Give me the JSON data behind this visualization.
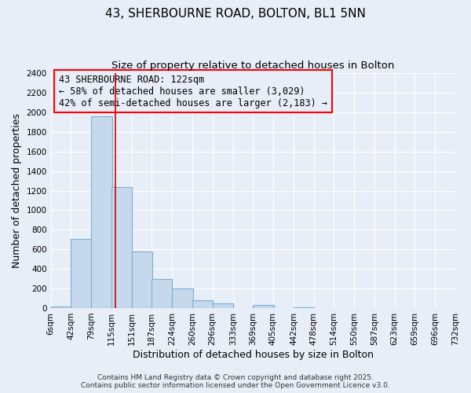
{
  "title": "43, SHERBOURNE ROAD, BOLTON, BL1 5NN",
  "subtitle": "Size of property relative to detached houses in Bolton",
  "xlabel": "Distribution of detached houses by size in Bolton",
  "ylabel": "Number of detached properties",
  "bar_left_edges": [
    6,
    42,
    79,
    115,
    151,
    187,
    224,
    260,
    296,
    333,
    369,
    405,
    442,
    478,
    514,
    550,
    587,
    623,
    659,
    696
  ],
  "bar_heights": [
    15,
    710,
    1960,
    1240,
    580,
    300,
    200,
    80,
    45,
    0,
    35,
    0,
    10,
    0,
    0,
    0,
    0,
    0,
    0,
    0
  ],
  "bin_width": 37,
  "x_tick_labels": [
    "6sqm",
    "42sqm",
    "79sqm",
    "115sqm",
    "151sqm",
    "187sqm",
    "224sqm",
    "260sqm",
    "296sqm",
    "333sqm",
    "369sqm",
    "405sqm",
    "442sqm",
    "478sqm",
    "514sqm",
    "550sqm",
    "587sqm",
    "623sqm",
    "659sqm",
    "696sqm",
    "732sqm"
  ],
  "x_tick_positions": [
    6,
    42,
    79,
    115,
    151,
    187,
    224,
    260,
    296,
    333,
    369,
    405,
    442,
    478,
    514,
    550,
    587,
    623,
    659,
    696,
    732
  ],
  "ylim": [
    0,
    2400
  ],
  "yticks": [
    0,
    200,
    400,
    600,
    800,
    1000,
    1200,
    1400,
    1600,
    1800,
    2000,
    2200,
    2400
  ],
  "bar_color": "#c6d9ec",
  "bar_edge_color": "#7aafd4",
  "vline_x": 122,
  "vline_color": "#cc0000",
  "annotation_line1": "43 SHERBOURNE ROAD: 122sqm",
  "annotation_line2": "← 58% of detached houses are smaller (3,029)",
  "annotation_line3": "42% of semi-detached houses are larger (2,183) →",
  "footnote1": "Contains HM Land Registry data © Crown copyright and database right 2025.",
  "footnote2": "Contains public sector information licensed under the Open Government Licence v3.0.",
  "background_color": "#e8eef8",
  "grid_color": "#ffffff",
  "title_fontsize": 11,
  "subtitle_fontsize": 9.5,
  "axis_label_fontsize": 9,
  "tick_fontsize": 7.5,
  "annotation_fontsize": 8.5,
  "footnote_fontsize": 6.5
}
